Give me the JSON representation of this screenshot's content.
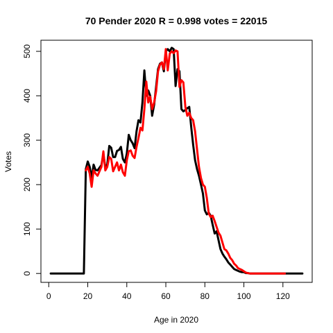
{
  "chart_data": {
    "type": "line",
    "title": "70 Pender 2020 R = 0.998 votes = 22015",
    "xlabel": "Age in 2020",
    "ylabel": "Votes",
    "xlim": [
      -4,
      135
    ],
    "ylim": [
      -20,
      525
    ],
    "x_ticks": [
      0,
      20,
      40,
      60,
      80,
      100,
      120
    ],
    "y_ticks": [
      0,
      100,
      200,
      300,
      400,
      500
    ],
    "grid": false,
    "legend": "none",
    "series": [
      {
        "color": "#000000",
        "line_width": 3,
        "x": [
          1,
          18,
          19,
          20,
          21,
          22,
          23,
          24,
          25,
          26,
          27,
          28,
          29,
          30,
          31,
          32,
          33,
          34,
          35,
          36,
          37,
          38,
          39,
          40,
          41,
          42,
          43,
          44,
          45,
          46,
          47,
          48,
          49,
          50,
          51,
          52,
          53,
          54,
          55,
          56,
          57,
          58,
          59,
          60,
          61,
          62,
          63,
          64,
          65,
          66,
          67,
          68,
          69,
          70,
          71,
          72,
          73,
          74,
          75,
          76,
          77,
          78,
          79,
          80,
          81,
          82,
          83,
          84,
          85,
          86,
          87,
          88,
          89,
          90,
          91,
          92,
          93,
          94,
          95,
          96,
          97,
          98,
          99,
          100,
          101,
          102,
          103,
          105,
          110,
          130
        ],
        "values": [
          0,
          0,
          235,
          252,
          240,
          215,
          245,
          233,
          232,
          238,
          244,
          268,
          240,
          245,
          287,
          283,
          262,
          262,
          276,
          278,
          285,
          258,
          250,
          270,
          312,
          300,
          293,
          282,
          320,
          345,
          340,
          385,
          457,
          400,
          412,
          400,
          355,
          380,
          420,
          460,
          472,
          475,
          455,
          500,
          505,
          500,
          508,
          505,
          422,
          460,
          455,
          370,
          365,
          368,
          372,
          375,
          330,
          290,
          255,
          235,
          220,
          200,
          180,
          142,
          133,
          137,
          130,
          110,
          90,
          95,
          75,
          55,
          45,
          38,
          32,
          25,
          20,
          15,
          10,
          8,
          6,
          4,
          3,
          3,
          1,
          1,
          0,
          0,
          0,
          0
        ]
      },
      {
        "color": "#ff0000",
        "line_width": 3,
        "x": [
          19,
          20,
          21,
          22,
          23,
          24,
          25,
          26,
          27,
          28,
          29,
          30,
          31,
          32,
          33,
          34,
          35,
          36,
          37,
          38,
          39,
          40,
          41,
          42,
          43,
          44,
          45,
          46,
          47,
          48,
          49,
          50,
          51,
          52,
          53,
          54,
          55,
          56,
          57,
          58,
          59,
          60,
          61,
          62,
          63,
          64,
          65,
          66,
          67,
          68,
          69,
          70,
          71,
          72,
          73,
          74,
          75,
          76,
          77,
          78,
          79,
          80,
          81,
          82,
          83,
          84,
          85,
          86,
          87,
          88,
          89,
          90,
          91,
          92,
          93,
          94,
          95,
          96,
          97,
          98,
          99,
          100,
          101,
          102,
          103,
          105,
          110,
          120,
          121
        ],
        "values": [
          232,
          240,
          225,
          195,
          232,
          225,
          220,
          230,
          240,
          275,
          232,
          240,
          262,
          258,
          230,
          240,
          250,
          232,
          245,
          228,
          220,
          255,
          275,
          277,
          265,
          260,
          285,
          305,
          328,
          322,
          370,
          432,
          385,
          398,
          370,
          385,
          410,
          455,
          470,
          475,
          460,
          505,
          457,
          495,
          500,
          496,
          502,
          500,
          420,
          435,
          430,
          375,
          355,
          362,
          350,
          345,
          320,
          280,
          240,
          215,
          200,
          195,
          170,
          135,
          127,
          130,
          118,
          105,
          92,
          85,
          70,
          55,
          52,
          45,
          35,
          30,
          22,
          18,
          12,
          10,
          8,
          5,
          2,
          1,
          0,
          0,
          0,
          0,
          0
        ]
      }
    ]
  }
}
